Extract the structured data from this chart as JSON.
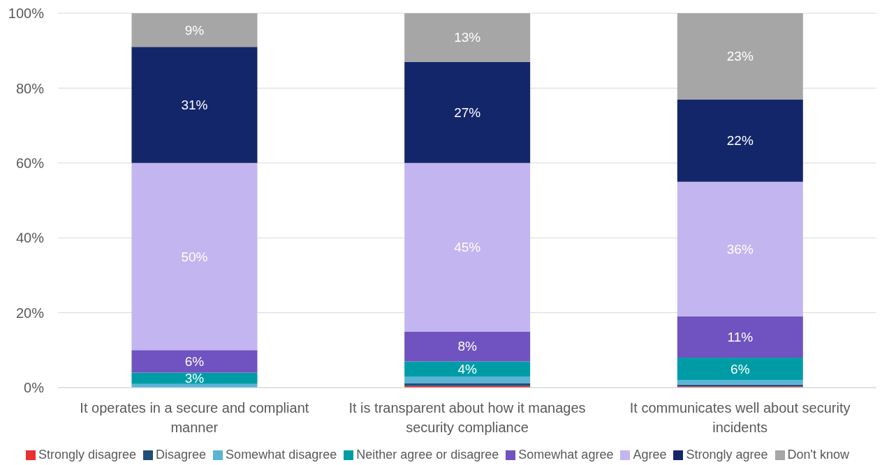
{
  "chart_data": {
    "type": "bar",
    "stacked": true,
    "categories": [
      "It operates in a secure and compliant manner",
      "It is transparent about how it manages security compliance",
      "It communicates well about security incidents"
    ],
    "series": [
      {
        "name": "Strongly disagree",
        "color": "#e8312f",
        "values": [
          0,
          0.4,
          0.3
        ]
      },
      {
        "name": "Disagree",
        "color": "#1f4e79",
        "values": [
          0,
          0.8,
          0.5
        ]
      },
      {
        "name": "Somewhat disagree",
        "color": "#5ab4d6",
        "values": [
          1,
          1.8,
          1.2
        ]
      },
      {
        "name": "Neither agree or disagree",
        "color": "#009ca6",
        "values": [
          3,
          4,
          6
        ],
        "value_labels": [
          "3%",
          "4%",
          "6%"
        ]
      },
      {
        "name": "Somewhat agree",
        "color": "#7052c0",
        "values": [
          6,
          8,
          11
        ],
        "value_labels": [
          "6%",
          "8%",
          "11%"
        ]
      },
      {
        "name": "Agree",
        "color": "#c3b6f0",
        "values": [
          50,
          45,
          36
        ],
        "value_labels": [
          "50%",
          "45%",
          "36%"
        ]
      },
      {
        "name": "Strongly agree",
        "color": "#14266a",
        "values": [
          31,
          27,
          22
        ],
        "value_labels": [
          "31%",
          "27%",
          "22%"
        ]
      },
      {
        "name": "Don't know",
        "color": "#a6a6a6",
        "values": [
          9,
          13,
          23
        ],
        "value_labels": [
          "9%",
          "13%",
          "23%"
        ]
      }
    ],
    "ylim": [
      0,
      100
    ],
    "yticks": [
      {
        "value": 0,
        "label": "0%"
      },
      {
        "value": 20,
        "label": "20%"
      },
      {
        "value": 40,
        "label": "40%"
      },
      {
        "value": 60,
        "label": "60%"
      },
      {
        "value": 80,
        "label": "80%"
      },
      {
        "value": 100,
        "label": "100%"
      }
    ],
    "grid": "y",
    "legend": "bottom"
  }
}
